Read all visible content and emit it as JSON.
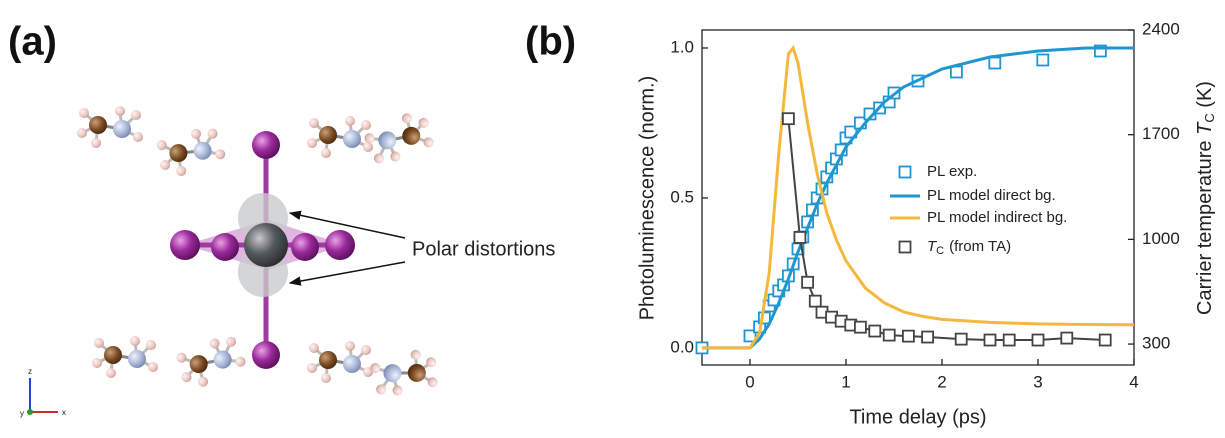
{
  "panel_labels": [
    "(a)",
    "(b)"
  ],
  "structure_annotation": "Polar distortions",
  "axis_triad": [
    "z",
    "y",
    "x"
  ],
  "chart_data": {
    "type": "line",
    "xlabel": "Time delay (ps)",
    "ylabel": "Photoluminescence (norm.)",
    "y2label": [
      "Carrier temperature",
      "T",
      "C",
      "(K)"
    ],
    "xlim": [
      -0.5,
      4
    ],
    "xticks": [
      0,
      1,
      2,
      3,
      4
    ],
    "ylim": [
      -0.057,
      1.06
    ],
    "yticks": [
      {
        "value": 0,
        "label": "0.0"
      },
      0.5,
      {
        "value": 1,
        "label": "1.0"
      }
    ],
    "y2lim": [
      160,
      2400
    ],
    "y2ticks": [
      300,
      1000,
      1700,
      2400
    ],
    "grid": false,
    "series": [
      {
        "name": [
          "PL exp."
        ],
        "color": "#1f96d2",
        "kind": "markers",
        "x": [
          -0.5,
          0,
          0.1,
          0.15,
          0.2,
          0.25,
          0.3,
          0.35,
          0.4,
          0.45,
          0.5,
          0.55,
          0.6,
          0.65,
          0.7,
          0.75,
          0.8,
          0.85,
          0.9,
          0.95,
          1.0,
          1.05,
          1.15,
          1.25,
          1.35,
          1.45,
          1.5,
          1.75,
          2.15,
          2.55,
          3.05,
          3.65
        ],
        "values": [
          0.0,
          0.04,
          0.07,
          0.1,
          0.14,
          0.16,
          0.19,
          0.21,
          0.24,
          0.28,
          0.33,
          0.37,
          0.42,
          0.46,
          0.5,
          0.53,
          0.57,
          0.6,
          0.63,
          0.66,
          0.7,
          0.72,
          0.75,
          0.78,
          0.8,
          0.82,
          0.85,
          0.89,
          0.92,
          0.95,
          0.96,
          0.99
        ]
      },
      {
        "name": [
          "PL model direct bg."
        ],
        "color": "#1f96d2",
        "kind": "line",
        "x": [
          -0.5,
          0,
          0.1,
          0.2,
          0.3,
          0.4,
          0.5,
          0.6,
          0.7,
          0.8,
          0.9,
          1.0,
          1.2,
          1.4,
          1.6,
          1.8,
          2.0,
          2.5,
          3.0,
          3.5,
          4.0
        ],
        "values": [
          0,
          0,
          0.03,
          0.08,
          0.15,
          0.23,
          0.32,
          0.4,
          0.48,
          0.55,
          0.61,
          0.67,
          0.75,
          0.82,
          0.87,
          0.9,
          0.93,
          0.97,
          0.99,
          1.0,
          1.0
        ]
      },
      {
        "name": [
          "PL model indirect bg."
        ],
        "color": "#f5b83d",
        "kind": "line",
        "x": [
          -0.5,
          0,
          0.1,
          0.2,
          0.3,
          0.4,
          0.45,
          0.5,
          0.6,
          0.7,
          0.8,
          0.9,
          1.0,
          1.2,
          1.4,
          1.6,
          1.8,
          2.0,
          2.5,
          3.0,
          3.5,
          4.0
        ],
        "values": [
          0,
          0,
          0.05,
          0.25,
          0.65,
          0.98,
          1.0,
          0.95,
          0.75,
          0.58,
          0.45,
          0.36,
          0.29,
          0.2,
          0.15,
          0.12,
          0.105,
          0.095,
          0.085,
          0.08,
          0.078,
          0.077
        ]
      },
      {
        "name": [
          "T",
          "C",
          "(from TA)"
        ],
        "color": "#444444",
        "kind": "markers+line",
        "axis": "y2",
        "x": [
          0.4,
          0.52,
          0.6,
          0.68,
          0.75,
          0.85,
          0.95,
          1.05,
          1.15,
          1.3,
          1.45,
          1.65,
          1.85,
          2.2,
          2.5,
          2.7,
          3.0,
          3.3,
          3.7
        ],
        "values": [
          1807,
          1013,
          713,
          587,
          513,
          480,
          453,
          427,
          413,
          387,
          360,
          353,
          347,
          333,
          327,
          327,
          327,
          340,
          327
        ]
      }
    ]
  }
}
